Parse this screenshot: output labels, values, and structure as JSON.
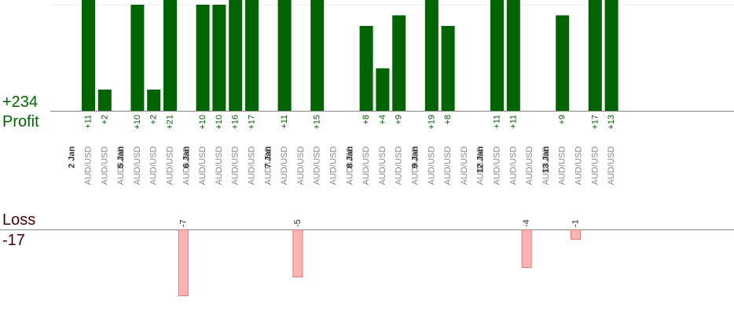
{
  "summary": {
    "profit_total": "+234",
    "profit_label": "Profit",
    "loss_label": "Loss",
    "loss_total": "-17"
  },
  "colors": {
    "profit_bar": "#006400",
    "profit_text": "#006400",
    "loss_bar_fill": "#ffb3b3",
    "loss_bar_stroke": "#e07a7a",
    "category_text": "#888888",
    "date_text": "#333333",
    "axis_line": "#888888",
    "grid_line": "#eeeeee"
  },
  "chart_data": {
    "type": "bar",
    "series": [
      {
        "name": "Profit",
        "values": [
          11,
          2,
          null,
          10,
          2,
          21,
          null,
          10,
          10,
          16,
          17,
          null,
          11,
          null,
          15,
          null,
          null,
          8,
          4,
          9,
          null,
          19,
          8,
          null,
          null,
          11,
          11,
          null,
          null,
          9,
          null,
          17,
          13
        ],
        "labels": [
          "+11",
          "+2",
          "",
          "+10",
          "+2",
          "+21",
          "",
          "+10",
          "+10",
          "+16",
          "+17",
          "",
          "+11",
          "",
          "+15",
          "",
          "",
          "+8",
          "+4",
          "+9",
          "",
          "+19",
          "+8",
          "",
          "",
          "+11",
          "+11",
          "",
          "",
          "+9",
          "",
          "+17",
          "+13"
        ]
      },
      {
        "name": "Loss",
        "values": [
          null,
          null,
          null,
          null,
          null,
          null,
          -7,
          null,
          null,
          null,
          null,
          null,
          null,
          -5,
          null,
          null,
          null,
          null,
          null,
          null,
          null,
          null,
          null,
          null,
          null,
          null,
          null,
          -4,
          null,
          null,
          -1,
          null,
          null
        ],
        "labels": [
          "",
          "",
          "",
          "",
          "",
          "",
          "-7",
          "",
          "",
          "",
          "",
          "",
          "",
          "-5",
          "",
          "",
          "",
          "",
          "",
          "",
          "",
          "",
          "",
          "",
          "",
          "",
          "",
          "-4",
          "",
          "",
          "-1",
          "",
          ""
        ]
      }
    ],
    "categories": [
      "AUD/USD",
      "AUD/USD",
      "AUD/USD",
      "AUD/USD",
      "AUD/USD",
      "AUD/USD",
      "AUD/USD",
      "AUD/USD",
      "AUD/USD",
      "AUD/USD",
      "AUD/USD",
      "AUD/USD",
      "AUD/USD",
      "AUD/USD",
      "AUD/USD",
      "AUD/USD",
      "AUD/USD",
      "AUD/USD",
      "AUD/USD",
      "AUD/USD",
      "AUD/USD",
      "AUD/USD",
      "AUD/USD",
      "AUD/USD",
      "AUD/USD",
      "AUD/USD",
      "AUD/USD",
      "AUD/USD",
      "AUD/USD",
      "AUD/USD",
      "AUD/USD",
      "AUD/USD",
      "AUD/USD"
    ],
    "date_groups": [
      {
        "label": "2 Jan",
        "start": 0
      },
      {
        "label": "5 Jan",
        "start": 3
      },
      {
        "label": "6 Jan",
        "start": 7
      },
      {
        "label": "7 Jan",
        "start": 12
      },
      {
        "label": "8 Jan",
        "start": 17
      },
      {
        "label": "9 Jan",
        "start": 21
      },
      {
        "label": "12 Jan",
        "start": 25
      },
      {
        "label": "13 Jan",
        "start": 29
      }
    ],
    "profit_ylim": [
      0,
      10
    ],
    "loss_ylim": [
      -7,
      0
    ],
    "grid": false,
    "legend": "none"
  }
}
